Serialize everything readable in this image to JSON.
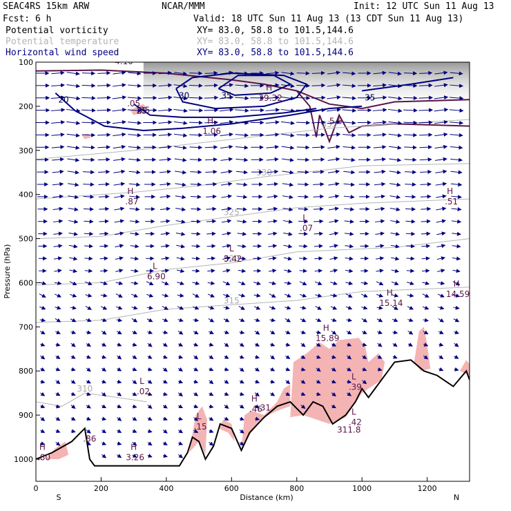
{
  "header": {
    "model": "SEAC4RS 15km ARW",
    "org": "NCAR/MMM",
    "init": "Init: 12 UTC Sun 11 Aug 13",
    "fcst": "Fcst:    6 h",
    "valid": "Valid: 18 UTC Sun 11 Aug 13 (13 CDT Sun 11 Aug 13)",
    "fields": [
      {
        "name": "Potential vorticity",
        "xy": "XY=  83.0, 58.8 to 101.5,144.6",
        "color": "#000000"
      },
      {
        "name": "Potential temperature",
        "xy": "XY=  83.0, 58.8 to 101.5,144.6",
        "color": "#b4b4b4"
      },
      {
        "name": "Horizontal wind speed",
        "xy": "XY=  83.0, 58.8 to 101.5,144.6",
        "color": "#000080"
      }
    ]
  },
  "chart_data": {
    "type": "cross-section",
    "xlabel": "Distance (km)",
    "ylabel": "Pressure (hPa)",
    "xlim": [
      0,
      1330
    ],
    "ylim": [
      1000,
      100
    ],
    "xticks": [
      "0",
      "200",
      "400",
      "600",
      "800",
      "1000",
      "1200"
    ],
    "yticks": [
      "100",
      "200",
      "300",
      "400",
      "500",
      "600",
      "700",
      "800",
      "900",
      "1000"
    ],
    "xtick_values": [
      0,
      200,
      400,
      600,
      800,
      1000,
      1200
    ],
    "ytick_values": [
      100,
      200,
      300,
      400,
      500,
      600,
      700,
      800,
      900,
      1000
    ],
    "left_end": "S",
    "right_end": "N",
    "colors": {
      "wind_speed": "#000080",
      "theta": "#b4b4b4",
      "pv_line": "#5a1446",
      "pv_shade": "#f4b4b4",
      "terrain": "#000000"
    },
    "wind_speed_contours": [
      {
        "label": "20",
        "points": [
          [
            60,
            170
          ],
          [
            120,
            210
          ],
          [
            210,
            245
          ],
          [
            330,
            255
          ],
          [
            450,
            250
          ],
          [
            600,
            240
          ],
          [
            780,
            220
          ],
          [
            900,
            205
          ],
          [
            1000,
            200
          ]
        ]
      },
      {
        "label": "25",
        "points": [
          [
            300,
            195
          ],
          [
            350,
            220
          ],
          [
            450,
            225
          ],
          [
            600,
            225
          ],
          [
            760,
            215
          ],
          [
            860,
            205
          ]
        ]
      },
      {
        "label": "30",
        "points": [
          [
            430,
            160
          ],
          [
            450,
            190
          ],
          [
            550,
            205
          ],
          [
            700,
            200
          ],
          [
            800,
            180
          ],
          [
            830,
            150
          ],
          [
            760,
            130
          ],
          [
            600,
            125
          ],
          [
            480,
            135
          ],
          [
            430,
            160
          ]
        ]
      },
      {
        "label": "35",
        "points": [
          [
            560,
            160
          ],
          [
            610,
            175
          ],
          [
            720,
            170
          ],
          [
            780,
            150
          ],
          [
            730,
            130
          ],
          [
            620,
            130
          ],
          [
            560,
            160
          ]
        ]
      },
      {
        "label": "35",
        "points": [
          [
            1000,
            165
          ],
          [
            1150,
            150
          ],
          [
            1280,
            135
          ]
        ]
      }
    ],
    "theta_contours": [
      {
        "label": "335",
        "points": [
          [
            0,
            320
          ],
          [
            300,
            300
          ],
          [
            600,
            275
          ],
          [
            900,
            250
          ],
          [
            1100,
            240
          ],
          [
            1330,
            230
          ]
        ]
      },
      {
        "label": "330",
        "points": [
          [
            0,
            410
          ],
          [
            300,
            395
          ],
          [
            500,
            380
          ],
          [
            700,
            360
          ],
          [
            1000,
            335
          ],
          [
            1330,
            330
          ]
        ]
      },
      {
        "label": "325",
        "points": [
          [
            0,
            500
          ],
          [
            200,
            495
          ],
          [
            400,
            470
          ],
          [
            600,
            450
          ],
          [
            800,
            430
          ],
          [
            1000,
            420
          ],
          [
            1330,
            410
          ]
        ]
      },
      {
        "label": "320",
        "points": [
          [
            0,
            605
          ],
          [
            200,
            600
          ],
          [
            400,
            570
          ],
          [
            600,
            555
          ],
          [
            800,
            530
          ],
          [
            1100,
            520
          ],
          [
            1330,
            500
          ]
        ]
      },
      {
        "label": "315",
        "points": [
          [
            0,
            690
          ],
          [
            200,
            685
          ],
          [
            400,
            660
          ],
          [
            600,
            650
          ],
          [
            800,
            640
          ],
          [
            1000,
            620
          ],
          [
            1330,
            610
          ]
        ]
      },
      {
        "label": "310",
        "points": [
          [
            0,
            870
          ],
          [
            80,
            880
          ],
          [
            150,
            850
          ],
          [
            250,
            860
          ],
          [
            340,
            870
          ]
        ]
      }
    ],
    "pv_extrema": [
      {
        "type": "H",
        "value": ".87",
        "x": 290,
        "p": 410
      },
      {
        "type": "L",
        "value": ".07",
        "x": 825,
        "p": 470
      },
      {
        "type": "H",
        "value": ".51",
        "x": 1270,
        "p": 410
      },
      {
        "type": "L",
        "value": "5.42",
        "x": 600,
        "p": 540
      },
      {
        "type": "L",
        "value": "6.90",
        "x": 365,
        "p": 580
      },
      {
        "type": "H",
        "value": "15.14",
        "x": 1085,
        "p": 640
      },
      {
        "type": "H",
        "value": "14.59",
        "x": 1290,
        "p": 620
      },
      {
        "type": "H",
        "value": "15.89",
        "x": 890,
        "p": 720
      },
      {
        "type": "L",
        "value": ".39",
        "x": 975,
        "p": 830
      },
      {
        "type": "L",
        "value": ".02",
        "x": 325,
        "p": 840
      },
      {
        "type": "H",
        "value": ".46",
        "x": 670,
        "p": 880
      },
      {
        "type": "L",
        "value": ".15",
        "x": 500,
        "p": 920
      },
      {
        "type": "L",
        "value": ".42",
        "x": 975,
        "p": 910
      },
      {
        "type": "H",
        "value": "3.26",
        "x": 300,
        "p": 990
      },
      {
        "type": "H",
        "value": ".80",
        "x": 20,
        "p": 990
      },
      {
        "type": "H",
        "value": "1.06",
        "x": 535,
        "p": 250
      },
      {
        "type": "H",
        "value": "39.32",
        "x": 715,
        "p": 175
      }
    ],
    "contour_labels": [
      {
        "text": ".25",
        "x": 330,
        "p": 215
      },
      {
        "text": ".05",
        "x": 300,
        "p": 200
      },
      {
        "text": "4.10",
        "x": 270,
        "p": 105
      },
      {
        "text": ".86",
        "x": 165,
        "p": 960
      },
      {
        "text": ".31",
        "x": 700,
        "p": 890
      },
      {
        "text": "311.8",
        "x": 960,
        "p": 940
      },
      {
        "text": "5.5",
        "x": 920,
        "p": 240
      }
    ],
    "terrain": [
      [
        0,
        1000
      ],
      [
        50,
        985
      ],
      [
        110,
        960
      ],
      [
        150,
        930
      ],
      [
        165,
        1000
      ],
      [
        180,
        1015
      ],
      [
        440,
        1015
      ],
      [
        465,
        985
      ],
      [
        480,
        950
      ],
      [
        500,
        960
      ],
      [
        520,
        1000
      ],
      [
        545,
        970
      ],
      [
        565,
        920
      ],
      [
        600,
        930
      ],
      [
        630,
        980
      ],
      [
        655,
        940
      ],
      [
        700,
        905
      ],
      [
        740,
        880
      ],
      [
        780,
        870
      ],
      [
        820,
        900
      ],
      [
        850,
        870
      ],
      [
        880,
        880
      ],
      [
        910,
        920
      ],
      [
        950,
        900
      ],
      [
        980,
        870
      ],
      [
        1000,
        840
      ],
      [
        1020,
        860
      ],
      [
        1050,
        830
      ],
      [
        1080,
        800
      ],
      [
        1100,
        780
      ],
      [
        1150,
        775
      ],
      [
        1190,
        800
      ],
      [
        1230,
        810
      ],
      [
        1280,
        835
      ],
      [
        1320,
        800
      ],
      [
        1330,
        820
      ]
    ]
  }
}
